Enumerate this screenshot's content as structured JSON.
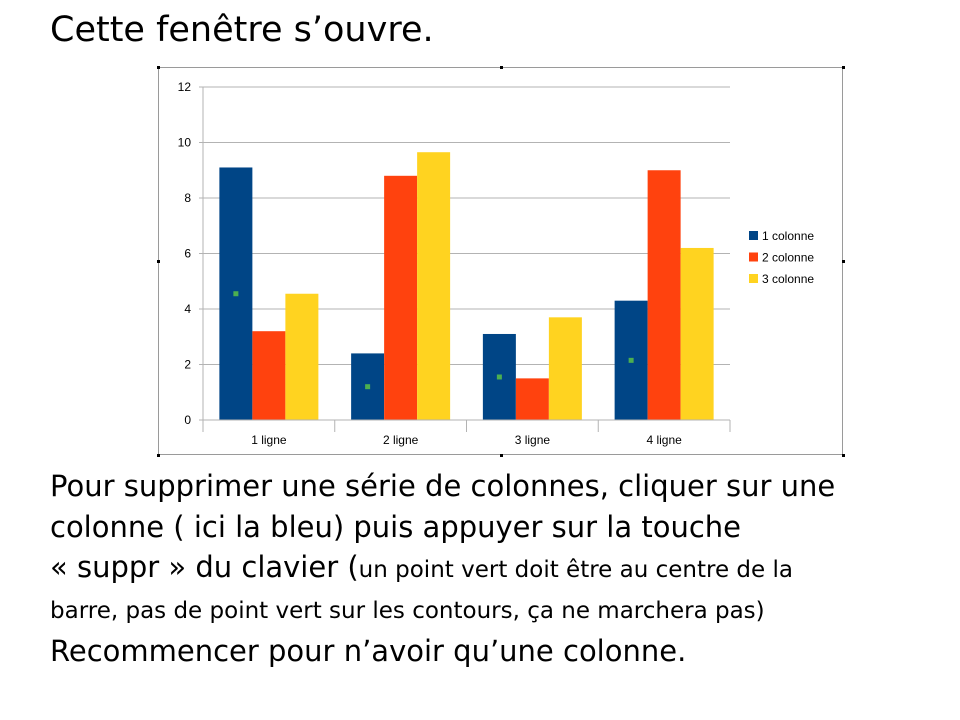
{
  "slide": {
    "title": "Cette fenêtre s’ouvre.",
    "instructions": {
      "line1": "Pour supprimer une série de colonnes, cliquer sur une",
      "line2": "colonne ( ici la bleu) puis appuyer sur la touche",
      "line3_main": "« suppr » du clavier (",
      "line3_small": "un point vert doit être au centre de la",
      "line4": "barre, pas de point vert sur les contours, ça ne marchera pas)",
      "line5": "Recommencer pour n’avoir qu’une colonne."
    }
  },
  "chart_data": {
    "type": "bar",
    "categories": [
      "1 ligne",
      "2 ligne",
      "3 ligne",
      "4 ligne"
    ],
    "series": [
      {
        "name": "1 colonne",
        "color": "#004586",
        "values": [
          9.1,
          2.4,
          3.1,
          4.3
        ],
        "selected": true
      },
      {
        "name": "2 colonne",
        "color": "#ff420e",
        "values": [
          3.2,
          8.8,
          1.5,
          9.0
        ]
      },
      {
        "name": "3 colonne",
        "color": "#ffd320",
        "values": [
          4.55,
          9.65,
          3.7,
          6.2
        ]
      }
    ],
    "ylim": [
      0,
      12
    ],
    "yticks": [
      "0",
      "2",
      "4",
      "6",
      "8",
      "10",
      "12"
    ],
    "grid": true,
    "legend": "right",
    "selection_marker_color": "#4caf50"
  }
}
